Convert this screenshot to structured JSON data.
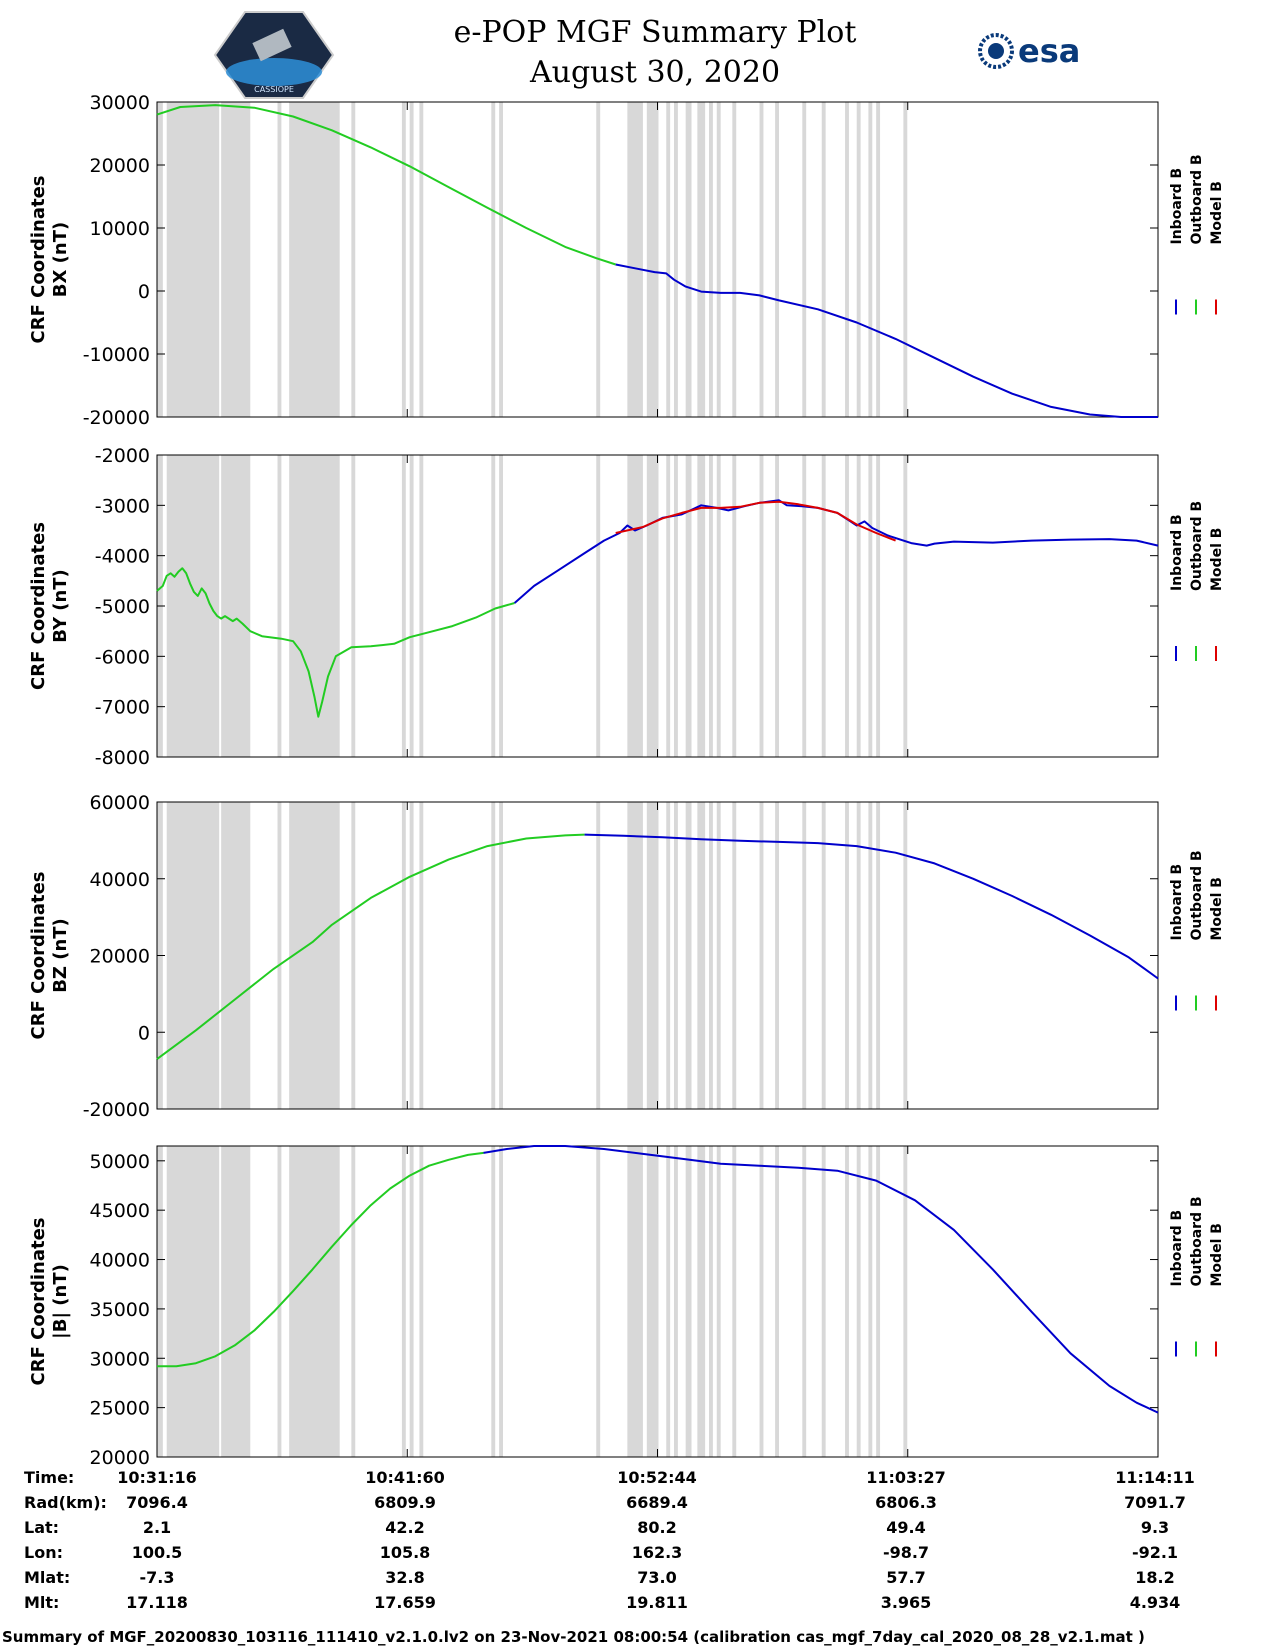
{
  "header": {
    "title_line1": "e-POP MGF Summary Plot",
    "title_line2": "August 30, 2020",
    "logo_left": "CASSIOPE",
    "logo_right": "esa"
  },
  "colors": {
    "inboard": "#0000cc",
    "outboard": "#22cc22",
    "model": "#dd0000",
    "gap_band": "#d8d8d8"
  },
  "chart_data": [
    {
      "type": "line",
      "ylabel_line1": "CRF Coordinates",
      "ylabel_line2": "BX (nT)",
      "xlim": [
        0,
        2575
      ],
      "ylim": [
        -20000,
        30000
      ],
      "yticks": [
        30000,
        20000,
        10000,
        0,
        -10000,
        -20000
      ],
      "legend": [
        "Inboard B",
        "Outboard B",
        "Model B"
      ],
      "series": [
        {
          "name": "Outboard B",
          "color_key": "outboard",
          "points": [
            [
              0,
              28000
            ],
            [
              60,
              29200
            ],
            [
              150,
              29500
            ],
            [
              250,
              29100
            ],
            [
              350,
              27700
            ],
            [
              450,
              25500
            ],
            [
              550,
              22800
            ],
            [
              650,
              19800
            ],
            [
              750,
              16500
            ],
            [
              850,
              13200
            ],
            [
              950,
              10000
            ],
            [
              1050,
              7000
            ],
            [
              1130,
              5200
            ],
            [
              1180,
              4200
            ]
          ]
        },
        {
          "name": "Inboard B",
          "color_key": "inboard",
          "points": [
            [
              1180,
              4200
            ],
            [
              1230,
              3600
            ],
            [
              1280,
              3000
            ],
            [
              1310,
              2800
            ],
            [
              1330,
              1800
            ],
            [
              1360,
              700
            ],
            [
              1400,
              -100
            ],
            [
              1450,
              -300
            ],
            [
              1500,
              -300
            ],
            [
              1550,
              -700
            ],
            [
              1600,
              -1500
            ],
            [
              1700,
              -2900
            ],
            [
              1800,
              -5000
            ],
            [
              1900,
              -7600
            ],
            [
              2000,
              -10600
            ],
            [
              2100,
              -13600
            ],
            [
              2200,
              -16300
            ],
            [
              2300,
              -18400
            ],
            [
              2400,
              -19600
            ],
            [
              2480,
              -20000
            ],
            [
              2575,
              -20000
            ]
          ]
        },
        {
          "name": "Model B",
          "color_key": "model",
          "points": []
        }
      ]
    },
    {
      "type": "line",
      "ylabel_line1": "CRF Coordinates",
      "ylabel_line2": "BY (nT)",
      "xlim": [
        0,
        2575
      ],
      "ylim": [
        -8000,
        -2000
      ],
      "yticks": [
        -2000,
        -3000,
        -4000,
        -5000,
        -6000,
        -7000,
        -8000
      ],
      "legend": [
        "Inboard B",
        "Outboard B",
        "Model B"
      ],
      "series": [
        {
          "name": "Outboard B",
          "color_key": "outboard",
          "points": [
            [
              0,
              -4700
            ],
            [
              15,
              -4600
            ],
            [
              25,
              -4400
            ],
            [
              35,
              -4350
            ],
            [
              45,
              -4420
            ],
            [
              55,
              -4320
            ],
            [
              65,
              -4250
            ],
            [
              75,
              -4350
            ],
            [
              85,
              -4550
            ],
            [
              95,
              -4720
            ],
            [
              105,
              -4800
            ],
            [
              115,
              -4650
            ],
            [
              125,
              -4750
            ],
            [
              135,
              -4950
            ],
            [
              145,
              -5100
            ],
            [
              155,
              -5200
            ],
            [
              165,
              -5250
            ],
            [
              175,
              -5200
            ],
            [
              185,
              -5250
            ],
            [
              195,
              -5300
            ],
            [
              205,
              -5250
            ],
            [
              220,
              -5350
            ],
            [
              240,
              -5500
            ],
            [
              270,
              -5600
            ],
            [
              320,
              -5650
            ],
            [
              350,
              -5700
            ],
            [
              370,
              -5900
            ],
            [
              390,
              -6300
            ],
            [
              405,
              -6800
            ],
            [
              415,
              -7200
            ],
            [
              425,
              -6900
            ],
            [
              440,
              -6400
            ],
            [
              460,
              -6000
            ],
            [
              500,
              -5820
            ],
            [
              550,
              -5800
            ],
            [
              610,
              -5750
            ],
            [
              650,
              -5620
            ],
            [
              700,
              -5520
            ],
            [
              760,
              -5400
            ],
            [
              820,
              -5230
            ],
            [
              870,
              -5050
            ],
            [
              920,
              -4940
            ]
          ]
        },
        {
          "name": "Inboard B",
          "color_key": "inboard",
          "points": [
            [
              920,
              -4940
            ],
            [
              970,
              -4600
            ],
            [
              1030,
              -4300
            ],
            [
              1100,
              -3950
            ],
            [
              1150,
              -3700
            ],
            [
              1190,
              -3550
            ],
            [
              1210,
              -3400
            ],
            [
              1230,
              -3500
            ],
            [
              1260,
              -3400
            ],
            [
              1300,
              -3250
            ],
            [
              1350,
              -3180
            ],
            [
              1400,
              -3000
            ],
            [
              1440,
              -3050
            ],
            [
              1470,
              -3100
            ],
            [
              1510,
              -3020
            ],
            [
              1550,
              -2950
            ],
            [
              1600,
              -2900
            ],
            [
              1620,
              -3000
            ],
            [
              1660,
              -3020
            ],
            [
              1700,
              -3050
            ],
            [
              1750,
              -3150
            ],
            [
              1780,
              -3300
            ],
            [
              1800,
              -3400
            ],
            [
              1820,
              -3320
            ],
            [
              1840,
              -3450
            ],
            [
              1880,
              -3600
            ],
            [
              1940,
              -3750
            ],
            [
              1980,
              -3800
            ],
            [
              2000,
              -3760
            ],
            [
              2050,
              -3720
            ],
            [
              2150,
              -3740
            ],
            [
              2250,
              -3700
            ],
            [
              2350,
              -3680
            ],
            [
              2450,
              -3670
            ],
            [
              2520,
              -3700
            ],
            [
              2575,
              -3800
            ]
          ]
        },
        {
          "name": "Model B",
          "color_key": "model",
          "points": [
            [
              1180,
              -3550
            ],
            [
              1250,
              -3430
            ],
            [
              1300,
              -3260
            ],
            [
              1350,
              -3150
            ],
            [
              1400,
              -3050
            ],
            [
              1450,
              -3050
            ],
            [
              1500,
              -3030
            ],
            [
              1550,
              -2950
            ],
            [
              1600,
              -2930
            ],
            [
              1650,
              -2980
            ],
            [
              1700,
              -3050
            ],
            [
              1750,
              -3150
            ],
            [
              1800,
              -3380
            ],
            [
              1850,
              -3550
            ],
            [
              1900,
              -3700
            ]
          ]
        }
      ]
    },
    {
      "type": "line",
      "ylabel_line1": "CRF Coordinates",
      "ylabel_line2": "BZ (nT)",
      "xlim": [
        0,
        2575
      ],
      "ylim": [
        -20000,
        60000
      ],
      "yticks": [
        60000,
        40000,
        20000,
        0,
        -20000
      ],
      "legend": [
        "Inboard B",
        "Outboard B",
        "Model B"
      ],
      "series": [
        {
          "name": "Outboard B",
          "color_key": "outboard",
          "points": [
            [
              0,
              -7000
            ],
            [
              100,
              500
            ],
            [
              200,
              8500
            ],
            [
              300,
              16500
            ],
            [
              400,
              23500
            ],
            [
              450,
              28000
            ],
            [
              550,
              35000
            ],
            [
              650,
              40500
            ],
            [
              750,
              45000
            ],
            [
              850,
              48500
            ],
            [
              950,
              50500
            ],
            [
              1050,
              51300
            ],
            [
              1100,
              51500
            ]
          ]
        },
        {
          "name": "Inboard B",
          "color_key": "inboard",
          "points": [
            [
              1100,
              51500
            ],
            [
              1200,
              51200
            ],
            [
              1300,
              50800
            ],
            [
              1400,
              50300
            ],
            [
              1500,
              49900
            ],
            [
              1600,
              49600
            ],
            [
              1700,
              49300
            ],
            [
              1800,
              48500
            ],
            [
              1900,
              46800
            ],
            [
              2000,
              44000
            ],
            [
              2100,
              40000
            ],
            [
              2200,
              35500
            ],
            [
              2300,
              30600
            ],
            [
              2400,
              25200
            ],
            [
              2500,
              19500
            ],
            [
              2575,
              14000
            ]
          ]
        },
        {
          "name": "Model B",
          "color_key": "model",
          "points": []
        }
      ]
    },
    {
      "type": "line",
      "ylabel_line1": "CRF Coordinates",
      "ylabel_line2": "|B| (nT)",
      "xlim": [
        0,
        2575
      ],
      "ylim": [
        20000,
        51500
      ],
      "yticks": [
        50000,
        45000,
        40000,
        35000,
        30000,
        25000,
        20000
      ],
      "legend": [
        "Inboard B",
        "Outboard B",
        "Model B"
      ],
      "series": [
        {
          "name": "Outboard B",
          "color_key": "outboard",
          "points": [
            [
              0,
              29200
            ],
            [
              50,
              29200
            ],
            [
              100,
              29500
            ],
            [
              150,
              30200
            ],
            [
              200,
              31300
            ],
            [
              250,
              32800
            ],
            [
              300,
              34700
            ],
            [
              350,
              36800
            ],
            [
              400,
              39000
            ],
            [
              450,
              41300
            ],
            [
              500,
              43500
            ],
            [
              550,
              45500
            ],
            [
              600,
              47200
            ],
            [
              650,
              48500
            ],
            [
              700,
              49500
            ],
            [
              750,
              50100
            ],
            [
              800,
              50600
            ],
            [
              840,
              50800
            ]
          ]
        },
        {
          "name": "Inboard B",
          "color_key": "inboard",
          "points": [
            [
              840,
              50800
            ],
            [
              900,
              51200
            ],
            [
              970,
              51500
            ],
            [
              1050,
              51500
            ],
            [
              1150,
              51200
            ],
            [
              1250,
              50700
            ],
            [
              1350,
              50200
            ],
            [
              1450,
              49700
            ],
            [
              1550,
              49500
            ],
            [
              1650,
              49300
            ],
            [
              1750,
              49000
            ],
            [
              1850,
              48000
            ],
            [
              1950,
              46000
            ],
            [
              2050,
              43000
            ],
            [
              2150,
              39000
            ],
            [
              2250,
              34700
            ],
            [
              2350,
              30500
            ],
            [
              2450,
              27200
            ],
            [
              2520,
              25500
            ],
            [
              2575,
              24500
            ]
          ]
        },
        {
          "name": "Model B",
          "color_key": "model",
          "points": []
        }
      ]
    }
  ],
  "gap_bands": [
    [
      0,
      15
    ],
    [
      25,
      160
    ],
    [
      165,
      240
    ],
    [
      310,
      320
    ],
    [
      340,
      470
    ],
    [
      500,
      510
    ],
    [
      630,
      640
    ],
    [
      650,
      660
    ],
    [
      675,
      685
    ],
    [
      860,
      870
    ],
    [
      880,
      890
    ],
    [
      1130,
      1140
    ],
    [
      1210,
      1250
    ],
    [
      1260,
      1290
    ],
    [
      1310,
      1320
    ],
    [
      1330,
      1340
    ],
    [
      1360,
      1375
    ],
    [
      1390,
      1410
    ],
    [
      1420,
      1430
    ],
    [
      1440,
      1450
    ],
    [
      1480,
      1490
    ],
    [
      1550,
      1560
    ],
    [
      1590,
      1600
    ],
    [
      1660,
      1670
    ],
    [
      1710,
      1720
    ],
    [
      1770,
      1780
    ],
    [
      1800,
      1810
    ],
    [
      1830,
      1840
    ],
    [
      1850,
      1860
    ],
    [
      1920,
      1930
    ]
  ],
  "time_axis": {
    "xtick_positions": [
      0,
      643.75,
      1287.5,
      1931.25,
      2575
    ]
  },
  "info_table": {
    "row_labels": [
      "Time:",
      "Rad(km):",
      "Lat:",
      "Lon:",
      "Mlat:",
      "Mlt:"
    ],
    "columns": [
      [
        "10:31:16",
        "7096.4",
        "2.1",
        "100.5",
        "-7.3",
        "17.118"
      ],
      [
        "10:41:60",
        "6809.9",
        "42.2",
        "105.8",
        "32.8",
        "17.659"
      ],
      [
        "10:52:44",
        "6689.4",
        "80.2",
        "162.3",
        "73.0",
        "19.811"
      ],
      [
        "11:03:27",
        "6806.3",
        "49.4",
        "-98.7",
        "57.7",
        "3.965"
      ],
      [
        "11:14:11",
        "7091.7",
        "9.3",
        "-92.1",
        "18.2",
        "4.934"
      ]
    ]
  },
  "footer": "Summary of MGF_20200830_103116_111410_v2.1.0.lv2 on 23-Nov-2021 08:00:54 (calibration cas_mgf_7day_cal_2020_08_28_v2.1.mat )"
}
